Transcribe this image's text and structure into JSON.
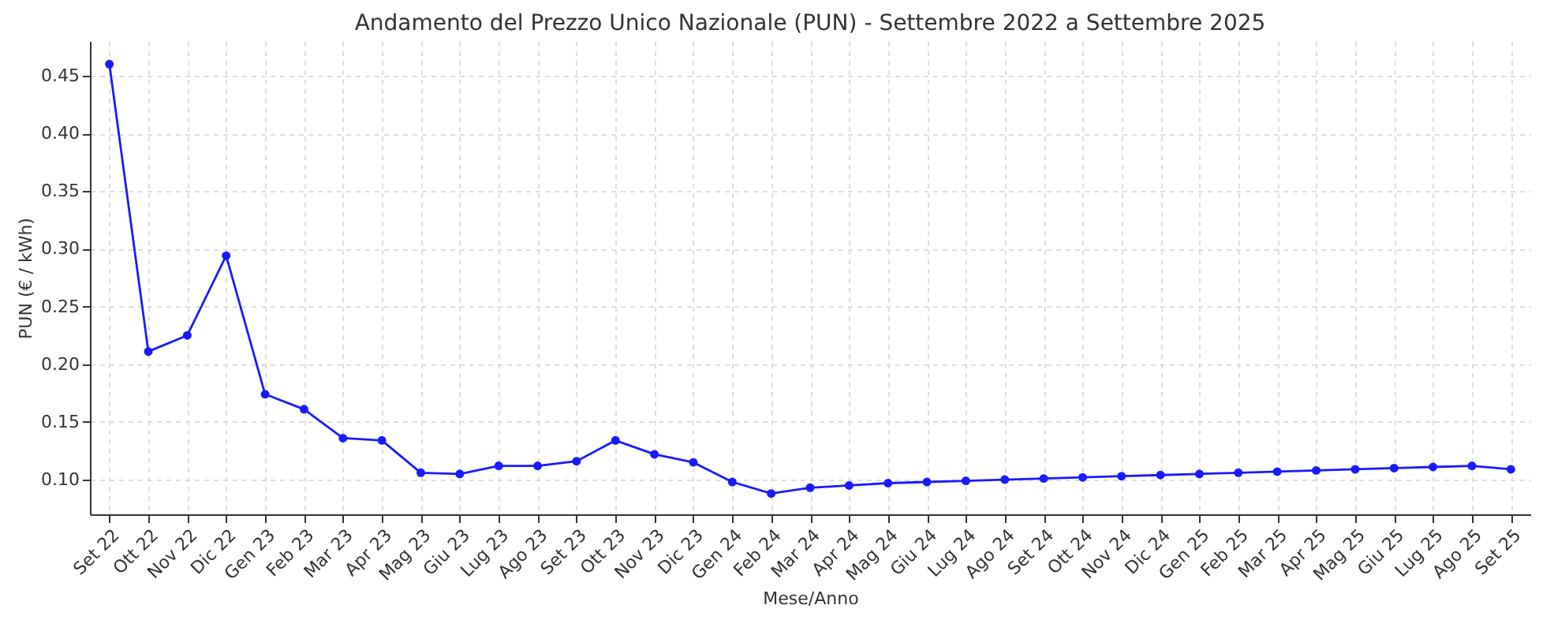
{
  "chart_data": {
    "type": "line",
    "title": "Andamento del Prezzo Unico Nazionale (PUN) - Settembre 2022 a Settembre 2025",
    "xlabel": "Mese/Anno",
    "ylabel": "PUN (€ / kWh)",
    "categories": [
      "Set 22",
      "Ott 22",
      "Nov 22",
      "Dic 22",
      "Gen 23",
      "Feb 23",
      "Mar 23",
      "Apr 23",
      "Mag 23",
      "Giu 23",
      "Lug 23",
      "Ago 23",
      "Set 23",
      "Ott 23",
      "Nov 23",
      "Dic 23",
      "Gen 24",
      "Feb 24",
      "Mar 24",
      "Apr 24",
      "Mag 24",
      "Giu 24",
      "Lug 24",
      "Ago 24",
      "Set 24",
      "Ott 24",
      "Nov 24",
      "Dic 24",
      "Gen 25",
      "Feb 25",
      "Mar 25",
      "Apr 25",
      "Mag 25",
      "Giu 25",
      "Lug 25",
      "Ago 25",
      "Set 25"
    ],
    "series": [
      {
        "color": "#1a1aff",
        "values": [
          0.46,
          0.211,
          0.225,
          0.294,
          0.174,
          0.161,
          0.136,
          0.134,
          0.106,
          0.105,
          0.112,
          0.112,
          0.116,
          0.134,
          0.122,
          0.115,
          0.098,
          0.088,
          0.093,
          0.095,
          0.097,
          0.098,
          0.099,
          0.1,
          0.101,
          0.102,
          0.103,
          0.104,
          0.105,
          0.106,
          0.107,
          0.108,
          0.109,
          0.11,
          0.111,
          0.112,
          0.109
        ]
      }
    ],
    "ylim": [
      0.07,
      0.48
    ],
    "yticks": [
      {
        "value": 0.1,
        "label": "0.10"
      },
      {
        "value": 0.15,
        "label": "0.15"
      },
      {
        "value": 0.2,
        "label": "0.20"
      },
      {
        "value": 0.25,
        "label": "0.25"
      },
      {
        "value": 0.3,
        "label": "0.30"
      },
      {
        "value": 0.35,
        "label": "0.35"
      },
      {
        "value": 0.4,
        "label": "0.40"
      },
      {
        "value": 0.45,
        "label": "0.45"
      }
    ],
    "grid": true,
    "marker": "circle",
    "line_style": "solid"
  }
}
